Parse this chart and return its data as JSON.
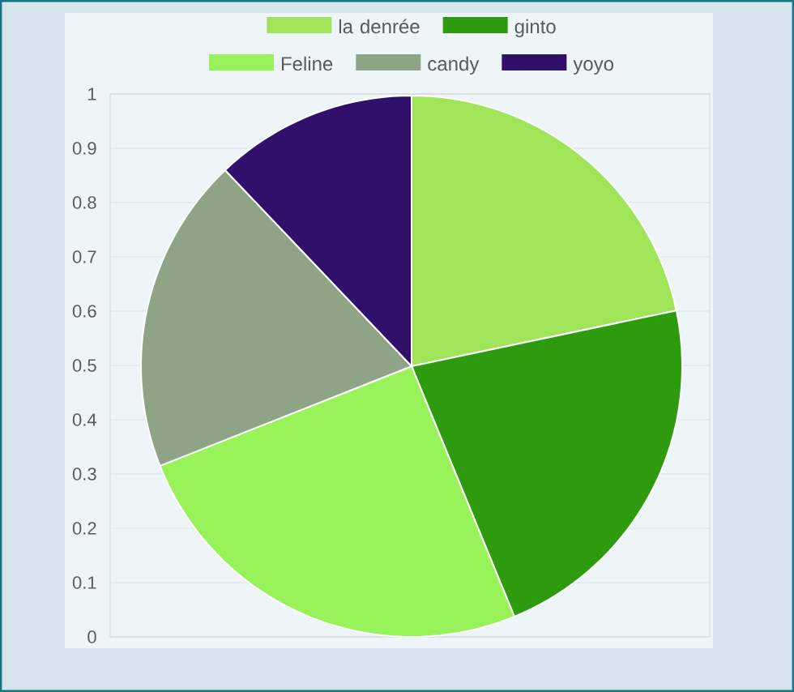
{
  "chart_data": {
    "type": "pie",
    "categories": [
      "la denrée",
      "ginto",
      "Feline",
      "candy",
      "yoyo"
    ],
    "values": [
      21.7,
      22.1,
      25.2,
      18.9,
      12.1
    ],
    "colors": [
      "#a0e45a",
      "#2e9b0e",
      "#98f25a",
      "#8fa386",
      "#31106b"
    ],
    "annotations": [
      "0",
      "0.1",
      "0.2",
      "0.3",
      "0.4",
      "0.5",
      "0.6",
      "0.7",
      "0.8",
      "0.9",
      "1"
    ],
    "grid": "y",
    "legend": "top"
  }
}
